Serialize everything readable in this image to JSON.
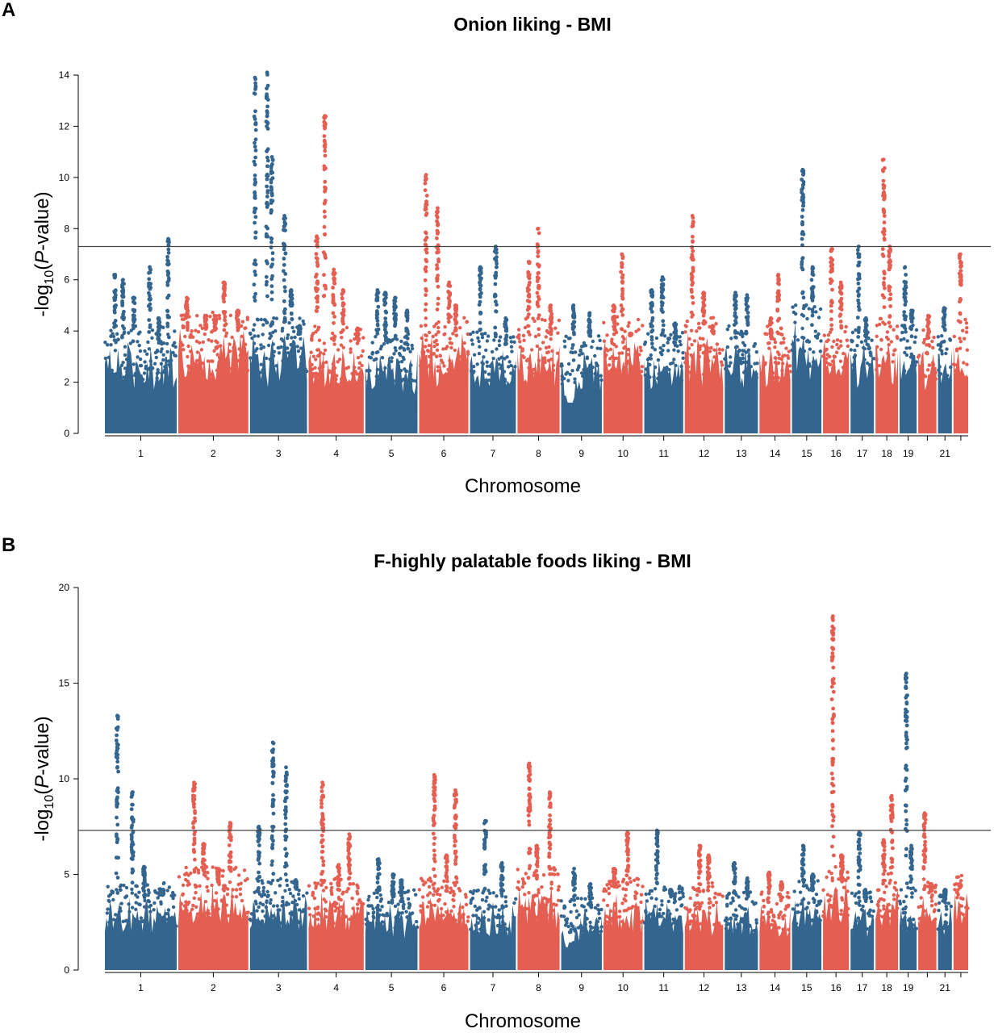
{
  "panels": [
    {
      "letter": "A"
    },
    {
      "letter": "B"
    }
  ],
  "colors": {
    "series_a": "#33658f",
    "series_b": "#e55e52",
    "threshold": "#444444"
  },
  "chart_data": [
    {
      "type": "scatter",
      "subtype": "manhattan",
      "title": "Onion liking - BMI",
      "xlabel": "Chromosome",
      "ylabel_parts": [
        "-log",
        "10",
        "(",
        "P",
        "-value)"
      ],
      "ylim": [
        0,
        14
      ],
      "yticks": [
        0,
        2,
        4,
        6,
        8,
        10,
        12,
        14
      ],
      "threshold": 7.3,
      "chromosomes": [
        {
          "label": "1",
          "peaks": [
            6.2,
            6.0,
            5.3,
            6.5,
            4.5,
            7.6
          ],
          "base": 3.5
        },
        {
          "label": "2",
          "peaks": [
            5.3,
            4.6,
            4.5,
            5.9,
            4.8
          ],
          "base": 4.0
        },
        {
          "label": "3",
          "peaks": [
            13.9,
            14.1,
            10.8,
            8.5,
            5.6,
            4.2
          ],
          "base": 3.8
        },
        {
          "label": "4",
          "peaks": [
            7.7,
            12.4,
            6.4,
            5.6,
            4.1
          ],
          "base": 3.5
        },
        {
          "label": "5",
          "peaks": [
            5.6,
            5.5,
            5.3,
            4.8
          ],
          "base": 3.2
        },
        {
          "label": "6",
          "peaks": [
            10.1,
            8.8,
            5.9,
            5.0
          ],
          "base": 3.8
        },
        {
          "label": "7",
          "peaks": [
            6.5,
            7.3,
            4.5
          ],
          "base": 3.3
        },
        {
          "label": "8",
          "peaks": [
            6.7,
            8.0,
            5.0
          ],
          "base": 3.8
        },
        {
          "label": "9",
          "peaks": [
            5.0,
            4.7
          ],
          "base": 3.2
        },
        {
          "label": "10",
          "peaks": [
            5.0,
            7.0,
            3.9
          ],
          "base": 3.8
        },
        {
          "label": "11",
          "peaks": [
            5.6,
            6.1,
            4.3
          ],
          "base": 3.3
        },
        {
          "label": "12",
          "peaks": [
            8.5,
            5.5,
            4.2
          ],
          "base": 3.8
        },
        {
          "label": "13",
          "peaks": [
            5.5,
            5.4
          ],
          "base": 3.5
        },
        {
          "label": "14",
          "peaks": [
            4.5,
            6.2
          ],
          "base": 3.5
        },
        {
          "label": "15",
          "peaks": [
            10.3,
            6.5
          ],
          "base": 4.2
        },
        {
          "label": "16",
          "peaks": [
            7.2,
            5.9
          ],
          "base": 3.6
        },
        {
          "label": "17",
          "peaks": [
            7.3,
            4.5
          ],
          "base": 3.5
        },
        {
          "label": "18",
          "peaks": [
            10.7,
            7.3
          ],
          "base": 3.8
        },
        {
          "label": "19",
          "peaks": [
            6.5,
            4.8
          ],
          "base": 3.6
        },
        {
          "label": "",
          "peaks": [
            4.6
          ],
          "base": 3.4
        },
        {
          "label": "21",
          "peaks": [
            4.9
          ],
          "base": 3.4
        },
        {
          "label": "",
          "peaks": [
            7.0
          ],
          "base": 3.8
        }
      ]
    },
    {
      "type": "scatter",
      "subtype": "manhattan",
      "title": "F-highly palatable foods liking - BMI",
      "xlabel": "Chromosome",
      "ylabel_parts": [
        "-log",
        "10",
        "(",
        "P",
        "-value)"
      ],
      "ylim": [
        0,
        20
      ],
      "yticks": [
        0,
        5,
        10,
        15,
        20
      ],
      "threshold": 7.3,
      "chromosomes": [
        {
          "label": "1",
          "peaks": [
            13.3,
            9.3,
            5.4,
            4.2
          ],
          "base": 3.8
        },
        {
          "label": "2",
          "peaks": [
            9.8,
            6.6,
            5.2,
            7.7
          ],
          "base": 4.5
        },
        {
          "label": "3",
          "peaks": [
            7.5,
            11.9,
            10.6,
            4.7
          ],
          "base": 4.0
        },
        {
          "label": "4",
          "peaks": [
            9.8,
            5.5,
            7.1
          ],
          "base": 4.0
        },
        {
          "label": "5",
          "peaks": [
            5.8,
            5.0,
            4.7
          ],
          "base": 3.5
        },
        {
          "label": "6",
          "peaks": [
            10.2,
            6.0,
            9.4
          ],
          "base": 4.0
        },
        {
          "label": "7",
          "peaks": [
            7.8,
            5.6
          ],
          "base": 3.5
        },
        {
          "label": "8",
          "peaks": [
            10.8,
            6.5,
            9.3
          ],
          "base": 4.5
        },
        {
          "label": "9",
          "peaks": [
            5.3,
            4.5
          ],
          "base": 3.2
        },
        {
          "label": "10",
          "peaks": [
            5.3,
            7.2
          ],
          "base": 4.0
        },
        {
          "label": "11",
          "peaks": [
            7.3,
            4.2
          ],
          "base": 3.8
        },
        {
          "label": "12",
          "peaks": [
            6.5,
            6.0
          ],
          "base": 3.8
        },
        {
          "label": "13",
          "peaks": [
            5.6,
            4.8
          ],
          "base": 3.4
        },
        {
          "label": "14",
          "peaks": [
            5.1,
            4.6
          ],
          "base": 3.4
        },
        {
          "label": "15",
          "peaks": [
            6.5,
            5.0
          ],
          "base": 4.0
        },
        {
          "label": "16",
          "peaks": [
            18.5,
            6.0
          ],
          "base": 4.5
        },
        {
          "label": "17",
          "peaks": [
            7.2,
            4.2
          ],
          "base": 3.4
        },
        {
          "label": "18",
          "peaks": [
            6.8,
            9.1
          ],
          "base": 4.2
        },
        {
          "label": "19",
          "peaks": [
            15.5,
            6.5
          ],
          "base": 3.6
        },
        {
          "label": "",
          "peaks": [
            8.2,
            4.5
          ],
          "base": 4.0
        },
        {
          "label": "21",
          "peaks": [
            4.2
          ],
          "base": 3.4
        },
        {
          "label": "",
          "peaks": [
            4.5
          ],
          "base": 4.3
        }
      ]
    }
  ]
}
